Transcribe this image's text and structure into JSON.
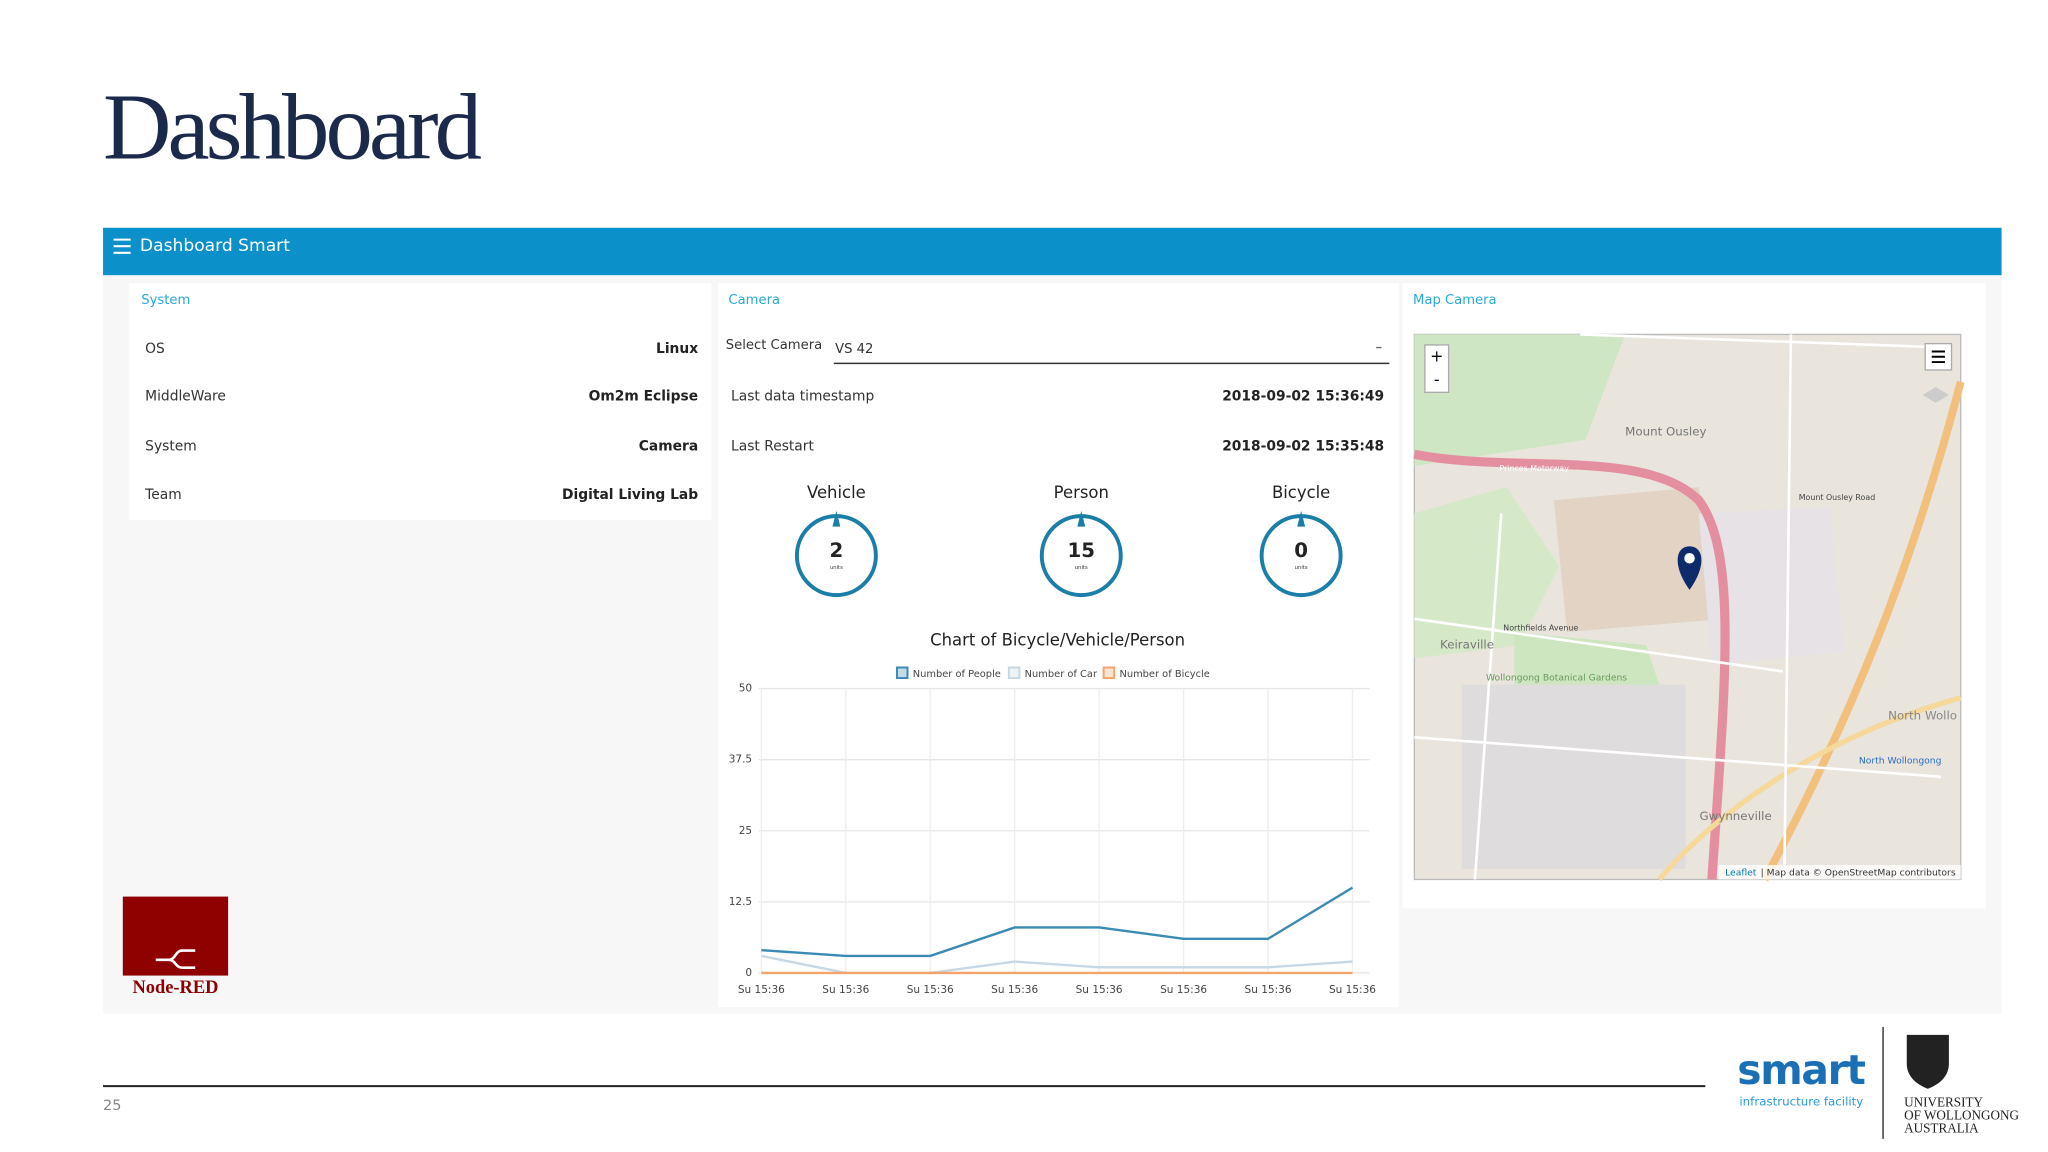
{
  "header": {
    "title": "Dashboard"
  },
  "app": {
    "title": "Dashboard Smart"
  },
  "system": {
    "heading": "System",
    "rows": [
      [
        "OS",
        "Linux"
      ],
      [
        "MiddleWare",
        "Om2m Eclipse"
      ],
      [
        "System",
        "Camera"
      ],
      [
        "Team",
        "Digital Living Lab"
      ]
    ]
  },
  "camera": {
    "heading": "Camera",
    "select_label": "Select Camera",
    "select_value": "VS 42",
    "rows": [
      [
        "Last data timestamp",
        "2018-09-02 15:36:49"
      ],
      [
        "Last Restart",
        "2018-09-02 15:35:48"
      ]
    ],
    "gauges": [
      {
        "label": "Vehicle",
        "value": 2,
        "unit": "units"
      },
      {
        "label": "Person",
        "value": 15,
        "unit": "units"
      },
      {
        "label": "Bicycle",
        "value": 0,
        "unit": "units"
      }
    ],
    "chart": {
      "type": "line",
      "title": "Chart of Bicycle/Vehicle/Person",
      "categories": [
        "Su 15:36",
        "Su 15:36",
        "Su 15:36",
        "Su 15:36",
        "Su 15:36",
        "Su 15:36",
        "Su 15:36",
        "Su 15:36"
      ],
      "series": [
        {
          "name": "Number of People",
          "color": "#3a8ab4",
          "values": [
            4,
            3,
            3,
            8,
            8,
            6,
            6,
            15
          ]
        },
        {
          "name": "Number of Car",
          "color": "#c6d8e6",
          "values": [
            3,
            0,
            0,
            2,
            1,
            1,
            1,
            2
          ]
        },
        {
          "name": "Number of Bicycle",
          "color": "#f4a46a",
          "values": [
            0,
            0,
            0,
            0,
            0,
            0,
            0,
            0
          ]
        }
      ],
      "ylim": [
        0,
        50
      ],
      "yticks": [
        0,
        12.5,
        25,
        37.5,
        50
      ],
      "grid": true
    }
  },
  "map": {
    "heading": "Map Camera",
    "zoom_in": "+",
    "zoom_out": "-",
    "labels": [
      "Mount Ousley",
      "Keiraville",
      "North Wollo",
      "Gwynneville",
      "North Wollongong",
      "Wollongong Botanical Gardens",
      "Princes Motorway",
      "Northfields Avenue",
      "Mount Ousley Road"
    ],
    "attribution_link": "Leaflet",
    "attribution": "| Map data © OpenStreetMap contributors"
  },
  "logo": {
    "node_red": "Node-RED"
  },
  "footer": {
    "page": 25,
    "brand": "smart",
    "brand_sub": "infrastructure facility",
    "university": [
      "UNIVERSITY",
      "OF WOLLONGONG",
      "AUSTRALIA"
    ]
  }
}
